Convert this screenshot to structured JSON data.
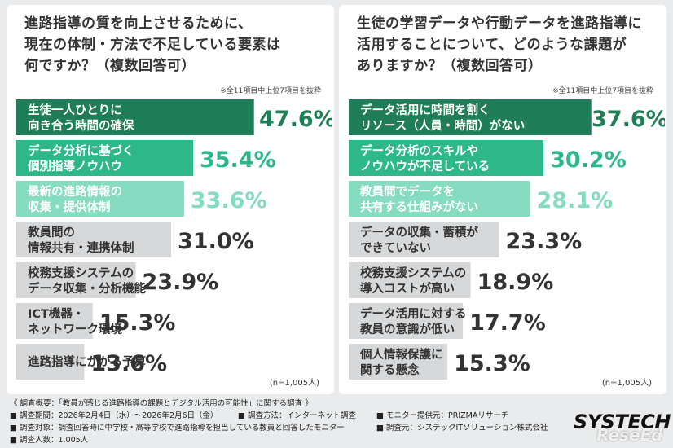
{
  "chart_data": [
    {
      "type": "bar",
      "orientation": "horizontal",
      "title": "進路指導の質を向上させるために、\n現在の体制・方法で不足している要素は\n何ですか？（複数回答可）",
      "note": "※全11項目中上位7項目を抜粋",
      "categories": [
        "生徒一人ひとりに\n向き合う時間の確保",
        "データ分析に基づく\n個別指導ノウハウ",
        "最新の進路情報の\n収集・提供体制",
        "教員間の\n情報共有・連携体制",
        "校務支援システムの\nデータ収集・分析機能",
        "ICT機器・\nネットワーク環境",
        "進路指導にかかる予算"
      ],
      "values": [
        47.6,
        35.4,
        33.6,
        31.0,
        23.9,
        15.3,
        13.6
      ],
      "labels": [
        "47.6%",
        "35.4%",
        "33.6%",
        "31.0%",
        "23.9%",
        "15.3%",
        "13.6%"
      ],
      "bar_colors": [
        "#1f7d57",
        "#2eb88a",
        "#86dcc0",
        "#d6d8da",
        "#d6d8da",
        "#d6d8da",
        "#d6d8da"
      ],
      "label_colors": [
        "#1f7d57",
        "#2eb88a",
        "#86dcc0",
        "#333333",
        "#333333",
        "#333333",
        "#333333"
      ],
      "sample": "(n=1,005人)"
    },
    {
      "type": "bar",
      "orientation": "horizontal",
      "title": "生徒の学習データや行動データを進路指導に\n活用することについて、どのような課題が\nありますか？（複数回答可）",
      "note": "※全11項目中上位7項目を抜粋",
      "categories": [
        "データ活用に時間を割く\nリソース（人員・時間）がない",
        "データ分析のスキルや\nノウハウが不足している",
        "教員間でデータを\n共有する仕組みがない",
        "データの収集・蓄積が\nできていない",
        "校務支援システムの\n導入コストが高い",
        "データ活用に対する\n教員の意識が低い",
        "個人情報保護に\n関する懸念"
      ],
      "values": [
        37.6,
        30.2,
        28.1,
        23.3,
        18.9,
        17.7,
        15.3
      ],
      "labels": [
        "37.6%",
        "30.2%",
        "28.1%",
        "23.3%",
        "18.9%",
        "17.7%",
        "15.3%"
      ],
      "bar_colors": [
        "#1f7d57",
        "#2eb88a",
        "#86dcc0",
        "#d6d8da",
        "#d6d8da",
        "#d6d8da",
        "#d6d8da"
      ],
      "label_colors": [
        "#1f7d57",
        "#2eb88a",
        "#86dcc0",
        "#333333",
        "#333333",
        "#333333",
        "#333333"
      ],
      "sample": "(n=1,005人)"
    }
  ],
  "footer": {
    "line1": "《 調査概要：「教員が感じる進路指導の課題とデジタル活用の可能性」に関する調査 》",
    "period": "■ 調査期間：2026年2月4日（水）～2026年2月6日（金）",
    "method": "■ 調査方法：インターネット調査",
    "provider": "■ モニター提供元：PRIZMAリサーチ",
    "target": "■ 調査対象：調査回答時に中学校・高等学校で進路指導を担当している教員と回答したモニター",
    "organizer": "■ 調査元：システックITソリューション株式会社",
    "count": "■ 調査人数：1,005人"
  },
  "logo": {
    "text": "SYSTECH",
    "watermark": "ReseEd"
  }
}
